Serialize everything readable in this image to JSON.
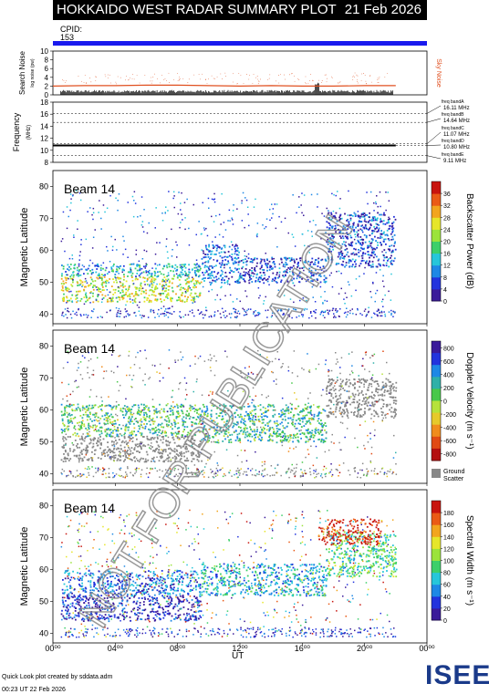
{
  "header": {
    "title": "HOKKAIDO WEST RADAR SUMMARY PLOT",
    "date": "21 Feb 2026",
    "cpid_label": "CPID:",
    "cpid_value": "153"
  },
  "colors": {
    "cpid_bar": "#1a1aee",
    "sky_noise": "#e05020",
    "watermark": "#888888",
    "ground_scatter": "#888888"
  },
  "watermark_text": "NOT FOR PUBLICATION",
  "noise_panel": {
    "ylabel": "Search Noise",
    "ylabel_units": "log noise (pw)",
    "right_label": "Sky Noise",
    "ticks": [
      "0",
      "2",
      "4",
      "6",
      "8",
      "10"
    ]
  },
  "freq_panel": {
    "ylabel": "Frequency",
    "ylabel_units": "(MHz)",
    "ticks": [
      "8",
      "10",
      "12",
      "14",
      "16",
      "18"
    ],
    "bands": [
      {
        "name": "freq bandA",
        "range": "16.11 MHz"
      },
      {
        "name": "freq bandB",
        "range": "14.64 MHz"
      },
      {
        "name": "freq bandC",
        "range": "11.07 MHz"
      },
      {
        "name": "freq bandD",
        "range": "10.80 MHz"
      },
      {
        "name": "freq bandE",
        "range": "9.11 MHz"
      }
    ]
  },
  "beam_panels": [
    {
      "beam_label": "Beam 14",
      "ylabel": "Magnetic Latitude",
      "cbar_label": "Backscatter Power (dB)",
      "cbar_ticks": [
        "0",
        "4",
        "8",
        "12",
        "16",
        "20",
        "24",
        "28",
        "32",
        "36"
      ],
      "y_ticks": [
        "40",
        "50",
        "60",
        "70",
        "80"
      ]
    },
    {
      "beam_label": "Beam 14",
      "ylabel": "Magnetic Latitude",
      "cbar_label": "Doppler Velocity (m s⁻¹)",
      "cbar_ticks": [
        "800",
        "600",
        "400",
        "200",
        "0",
        "-200",
        "-400",
        "-600",
        "-800"
      ],
      "y_ticks": [
        "40",
        "50",
        "60",
        "70",
        "80"
      ],
      "ground_scatter_label": "Ground",
      "ground_scatter_label2": "Scatter"
    },
    {
      "beam_label": "Beam 14",
      "ylabel": "Magnetic Latitude",
      "cbar_label": "Spectral Width (m s⁻¹)",
      "cbar_ticks": [
        "0",
        "20",
        "40",
        "60",
        "80",
        "100",
        "120",
        "140",
        "160",
        "180"
      ],
      "y_ticks": [
        "40",
        "50",
        "60",
        "70",
        "80"
      ]
    }
  ],
  "x_axis": {
    "label": "UT",
    "ticks": [
      "00⁰⁰",
      "04⁰⁰",
      "08⁰⁰",
      "12⁰⁰",
      "16⁰⁰",
      "20⁰⁰",
      "00⁰⁰"
    ]
  },
  "footer": {
    "line1": "Quick Look plot created by sddata.adm",
    "line2": "00:23 UT 22 Feb 2026"
  },
  "logo_text": "ISEE",
  "chart_data": [
    {
      "type": "line",
      "title": "Search Noise",
      "ylabel": "Search Noise",
      "x_range_ut_hours": [
        0,
        24
      ],
      "ylim": [
        0,
        10
      ],
      "series": [
        {
          "name": "Sky Noise",
          "x": [
            0,
            2,
            4,
            6,
            8,
            10,
            12,
            14,
            16,
            18,
            20,
            22
          ],
          "values": [
            2.0,
            2.1,
            2.1,
            2.2,
            2.2,
            2.1,
            2.0,
            2.1,
            2.0,
            2.0,
            2.1,
            2.1
          ]
        }
      ]
    },
    {
      "type": "line",
      "title": "Frequency",
      "ylabel": "Frequency (MHz)",
      "x_range_ut_hours": [
        0,
        24
      ],
      "ylim": [
        8,
        18
      ],
      "series": [
        {
          "name": "Operating frequency",
          "x": [
            0,
            22
          ],
          "values": [
            10.8,
            10.8
          ]
        }
      ]
    },
    {
      "type": "heatmap",
      "title": "Beam 14 Backscatter Power",
      "ylabel": "Magnetic Latitude",
      "xlabel": "UT",
      "x_range_ut_hours": [
        0,
        24
      ],
      "ylim": [
        37,
        85
      ],
      "clim": [
        0,
        36
      ],
      "bands": [
        {
          "t0": 0.5,
          "t1": 9.5,
          "lat0": 44,
          "lat1": 52,
          "val": 22
        },
        {
          "t0": 0.5,
          "t1": 9.5,
          "lat0": 52,
          "lat1": 56,
          "val": 12
        },
        {
          "t0": 9.5,
          "t1": 12,
          "lat0": 50,
          "lat1": 62,
          "val": 8
        },
        {
          "t0": 12,
          "t1": 17.5,
          "lat0": 50,
          "lat1": 58,
          "val": 6
        },
        {
          "t0": 17.5,
          "t1": 22,
          "lat0": 55,
          "lat1": 72,
          "val": 6
        }
      ]
    },
    {
      "type": "heatmap",
      "title": "Beam 14 Doppler Velocity",
      "ylabel": "Magnetic Latitude",
      "xlabel": "UT",
      "x_range_ut_hours": [
        0,
        24
      ],
      "ylim": [
        37,
        85
      ],
      "clim": [
        -800,
        800
      ],
      "bands": [
        {
          "t0": 0.5,
          "t1": 9.5,
          "lat0": 44,
          "lat1": 52,
          "val": "ground"
        },
        {
          "t0": 0.5,
          "t1": 9.5,
          "lat0": 52,
          "lat1": 62,
          "val": -100
        },
        {
          "t0": 9.5,
          "t1": 17.5,
          "lat0": 50,
          "lat1": 62,
          "val": -200
        },
        {
          "t0": 17.5,
          "t1": 22,
          "lat0": 58,
          "lat1": 70,
          "val": "ground"
        }
      ]
    },
    {
      "type": "heatmap",
      "title": "Beam 14 Spectral Width",
      "ylabel": "Magnetic Latitude",
      "xlabel": "UT",
      "x_range_ut_hours": [
        0,
        24
      ],
      "ylim": [
        37,
        85
      ],
      "clim": [
        0,
        180
      ],
      "bands": [
        {
          "t0": 0.5,
          "t1": 9.5,
          "lat0": 44,
          "lat1": 52,
          "val": 20
        },
        {
          "t0": 0.5,
          "t1": 9.5,
          "lat0": 52,
          "lat1": 60,
          "val": 40
        },
        {
          "t0": 9.5,
          "t1": 17.5,
          "lat0": 52,
          "lat1": 62,
          "val": 60
        },
        {
          "t0": 17.5,
          "t1": 22,
          "lat0": 58,
          "lat1": 72,
          "val": 80
        },
        {
          "t0": 17,
          "t1": 21,
          "lat0": 68,
          "lat1": 76,
          "val": 170
        }
      ]
    }
  ]
}
